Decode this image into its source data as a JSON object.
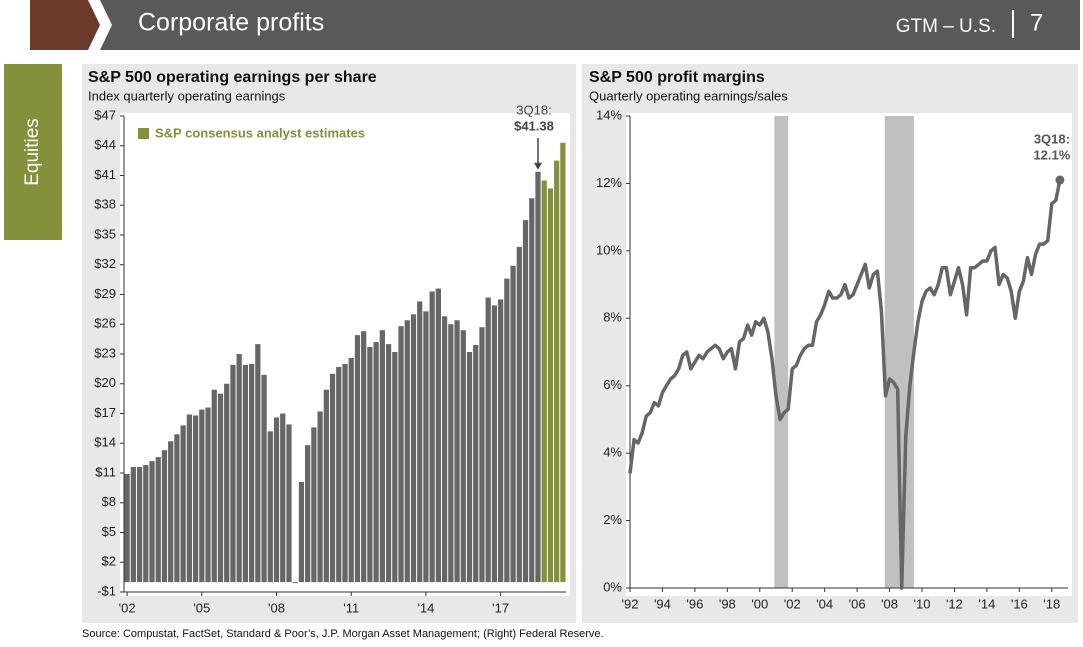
{
  "header": {
    "title": "Corporate profits",
    "brand": "GTM – U.S.",
    "page": "7"
  },
  "sidebar": {
    "label": "Equities"
  },
  "source": "Source: Compustat, FactSet, Standard & Poor’s, J.P. Morgan Asset Management; (Right) Federal Reserve.",
  "chart_data": [
    {
      "type": "bar",
      "title": "S&P 500 operating earnings per share",
      "subtitle": "Index quarterly operating earnings",
      "categories": [
        "'02",
        null,
        null,
        null,
        null,
        null,
        null,
        null,
        null,
        null,
        null,
        null,
        "'05",
        null,
        null,
        null,
        null,
        null,
        null,
        null,
        null,
        null,
        null,
        null,
        "'08",
        null,
        null,
        null,
        null,
        null,
        null,
        null,
        null,
        null,
        null,
        null,
        "'11",
        null,
        null,
        null,
        null,
        null,
        null,
        null,
        null,
        null,
        null,
        null,
        "'14",
        null,
        null,
        null,
        null,
        null,
        null,
        null,
        null,
        null,
        null,
        null,
        "'17",
        null,
        null,
        null,
        null,
        null,
        null,
        null,
        null,
        null,
        null
      ],
      "series": [
        {
          "color": "#666666",
          "values": [
            10.9,
            11.6,
            11.6,
            11.8,
            12.2,
            12.6,
            13.3,
            14.2,
            14.9,
            15.8,
            16.9,
            16.8,
            17.4,
            17.6,
            19.4,
            19.0,
            20.0,
            21.9,
            23.0,
            21.9,
            22.0,
            24.0,
            20.9,
            15.2,
            16.6,
            17.0,
            15.9,
            -0.1,
            10.1,
            13.8,
            15.6,
            17.2,
            19.4,
            21.0,
            21.7,
            22.0,
            22.6,
            24.9,
            25.3,
            23.7,
            24.2,
            25.4,
            24.0,
            23.2,
            25.8,
            26.4,
            27.0,
            28.3,
            27.3,
            29.3,
            29.6,
            26.8,
            26.0,
            26.4,
            25.4,
            23.2,
            23.9,
            25.7,
            28.7,
            27.9,
            28.5,
            30.6,
            31.9,
            33.8,
            36.5,
            38.7,
            41.38,
            null,
            null,
            null,
            null
          ]
        },
        {
          "name": "S&P consensus analyst estimates",
          "color": "#84913a",
          "values": [
            null,
            null,
            null,
            null,
            null,
            null,
            null,
            null,
            null,
            null,
            null,
            null,
            null,
            null,
            null,
            null,
            null,
            null,
            null,
            null,
            null,
            null,
            null,
            null,
            null,
            null,
            null,
            null,
            null,
            null,
            null,
            null,
            null,
            null,
            null,
            null,
            null,
            null,
            null,
            null,
            null,
            null,
            null,
            null,
            null,
            null,
            null,
            null,
            null,
            null,
            null,
            null,
            null,
            null,
            null,
            null,
            null,
            null,
            null,
            null,
            null,
            null,
            null,
            null,
            null,
            null,
            null,
            40.5,
            39.7,
            42.5,
            44.3
          ]
        }
      ],
      "annotation": [
        "3Q18:",
        "$41.38"
      ],
      "ylim": [
        -1,
        47
      ],
      "yticks": [
        {
          "value": -1,
          "label": "-$1"
        },
        {
          "value": 2,
          "label": "$2"
        },
        {
          "value": 5,
          "label": "$5"
        },
        {
          "value": 8,
          "label": "$8"
        },
        {
          "value": 11,
          "label": "$11"
        },
        {
          "value": 14,
          "label": "$14"
        },
        {
          "value": 17,
          "label": "$17"
        },
        {
          "value": 20,
          "label": "$20"
        },
        {
          "value": 23,
          "label": "$23"
        },
        {
          "value": 26,
          "label": "$26"
        },
        {
          "value": 29,
          "label": "$29"
        },
        {
          "value": 32,
          "label": "$32"
        },
        {
          "value": 35,
          "label": "$35"
        },
        {
          "value": 38,
          "label": "$38"
        },
        {
          "value": 41,
          "label": "$41"
        },
        {
          "value": 44,
          "label": "$44"
        },
        {
          "value": 47,
          "label": "$47"
        }
      ],
      "legend": "top-left",
      "grid": false
    },
    {
      "type": "line",
      "title": "S&P 500 profit margins",
      "subtitle": "Quarterly operating earnings/sales",
      "color": "#666666",
      "recession_color": "#c0c0c0",
      "recessions": [
        [
          2000.9,
          2001.75
        ],
        [
          2007.7,
          2009.5
        ]
      ],
      "x": [
        1992,
        1992.25,
        1992.5,
        1992.75,
        1993,
        1993.25,
        1993.5,
        1993.75,
        1994,
        1994.25,
        1994.5,
        1994.75,
        1995,
        1995.25,
        1995.5,
        1995.75,
        1996,
        1996.25,
        1996.5,
        1996.75,
        1997,
        1997.25,
        1997.5,
        1997.75,
        1998,
        1998.25,
        1998.5,
        1998.75,
        1999,
        1999.25,
        1999.5,
        1999.75,
        2000,
        2000.25,
        2000.5,
        2000.75,
        2001,
        2001.25,
        2001.5,
        2001.75,
        2002,
        2002.25,
        2002.5,
        2002.75,
        2003,
        2003.25,
        2003.5,
        2003.75,
        2004,
        2004.25,
        2004.5,
        2004.75,
        2005,
        2005.25,
        2005.5,
        2005.75,
        2006,
        2006.25,
        2006.5,
        2006.75,
        2007,
        2007.25,
        2007.5,
        2007.75,
        2008,
        2008.25,
        2008.5,
        2008.75,
        2009,
        2009.25,
        2009.5,
        2009.75,
        2010,
        2010.25,
        2010.5,
        2010.75,
        2011,
        2011.25,
        2011.5,
        2011.75,
        2012,
        2012.25,
        2012.5,
        2012.75,
        2013,
        2013.25,
        2013.5,
        2013.75,
        2014,
        2014.25,
        2014.5,
        2014.75,
        2015,
        2015.25,
        2015.5,
        2015.75,
        2016,
        2016.25,
        2016.5,
        2016.75,
        2017,
        2017.25,
        2017.5,
        2017.75,
        2018,
        2018.25,
        2018.5
      ],
      "values": [
        3.4,
        4.4,
        4.3,
        4.6,
        5.1,
        5.2,
        5.5,
        5.4,
        5.8,
        6.0,
        6.2,
        6.3,
        6.5,
        6.9,
        7.0,
        6.5,
        6.7,
        6.9,
        6.8,
        7.0,
        7.1,
        7.2,
        7.1,
        6.8,
        7.0,
        7.1,
        6.5,
        7.3,
        7.4,
        7.8,
        7.5,
        7.9,
        7.8,
        8.0,
        7.6,
        6.8,
        5.7,
        5.0,
        5.2,
        5.3,
        6.5,
        6.6,
        6.9,
        7.1,
        7.2,
        7.2,
        7.9,
        8.1,
        8.4,
        8.8,
        8.6,
        8.6,
        8.7,
        9.0,
        8.6,
        8.7,
        9.0,
        9.3,
        9.6,
        8.9,
        9.3,
        9.4,
        8.2,
        5.7,
        6.2,
        6.1,
        5.9,
        0.0,
        4.5,
        6.0,
        7.0,
        7.9,
        8.5,
        8.8,
        8.9,
        8.7,
        9.0,
        9.5,
        9.5,
        8.7,
        9.1,
        9.5,
        9.0,
        8.1,
        9.5,
        9.5,
        9.6,
        9.7,
        9.7,
        10.0,
        10.1,
        9.0,
        9.3,
        9.2,
        8.8,
        8.0,
        8.8,
        9.1,
        9.8,
        9.3,
        9.9,
        10.2,
        10.2,
        10.3,
        11.4,
        11.5,
        12.1
      ],
      "annotation": [
        "3Q18:",
        "12.1%"
      ],
      "xlim": [
        1992,
        2019
      ],
      "xticks": [
        {
          "value": 1992,
          "label": "'92"
        },
        {
          "value": 1994,
          "label": "'94"
        },
        {
          "value": 1996,
          "label": "'96"
        },
        {
          "value": 1998,
          "label": "'98"
        },
        {
          "value": 2000,
          "label": "'00"
        },
        {
          "value": 2002,
          "label": "'02"
        },
        {
          "value": 2004,
          "label": "'04"
        },
        {
          "value": 2006,
          "label": "'06"
        },
        {
          "value": 2008,
          "label": "'08"
        },
        {
          "value": 2010,
          "label": "'10"
        },
        {
          "value": 2012,
          "label": "'12"
        },
        {
          "value": 2014,
          "label": "'14"
        },
        {
          "value": 2016,
          "label": "'16"
        },
        {
          "value": 2018,
          "label": "'18"
        }
      ],
      "ylim": [
        0,
        14
      ],
      "yticks": [
        {
          "value": 0,
          "label": "0%"
        },
        {
          "value": 2,
          "label": "2%"
        },
        {
          "value": 4,
          "label": "4%"
        },
        {
          "value": 6,
          "label": "6%"
        },
        {
          "value": 8,
          "label": "8%"
        },
        {
          "value": 10,
          "label": "10%"
        },
        {
          "value": 12,
          "label": "12%"
        },
        {
          "value": 14,
          "label": "14%"
        }
      ],
      "grid": false
    }
  ]
}
